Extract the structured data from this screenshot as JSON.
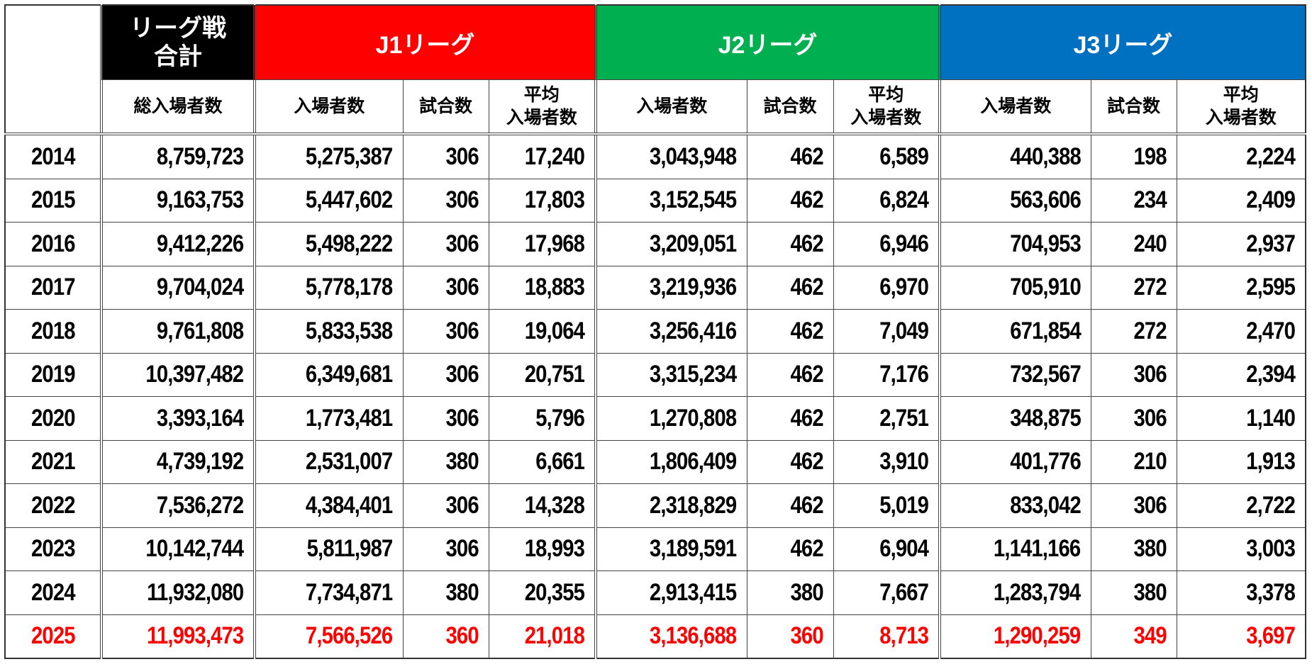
{
  "header": {
    "total": {
      "label_line1": "リーグ戦",
      "label_line2": "合計",
      "color": "#000000"
    },
    "leagues": [
      {
        "label": "J1リーグ",
        "color": "#ff0000"
      },
      {
        "label": "J2リーグ",
        "color": "#00b050"
      },
      {
        "label": "J3リーグ",
        "color": "#0070c0"
      }
    ],
    "sub": {
      "total_attendance": "総入場者数",
      "attendance": "入場者数",
      "matches": "試合数",
      "average_line1": "平均",
      "average_line2": "入場者数"
    }
  },
  "highlight_color": "#ff0000",
  "rows": [
    {
      "year": "2014",
      "total": "8,759,723",
      "j1": [
        "5,275,387",
        "306",
        "17,240"
      ],
      "j2": [
        "3,043,948",
        "462",
        "6,589"
      ],
      "j3": [
        "440,388",
        "198",
        "2,224"
      ]
    },
    {
      "year": "2015",
      "total": "9,163,753",
      "j1": [
        "5,447,602",
        "306",
        "17,803"
      ],
      "j2": [
        "3,152,545",
        "462",
        "6,824"
      ],
      "j3": [
        "563,606",
        "234",
        "2,409"
      ]
    },
    {
      "year": "2016",
      "total": "9,412,226",
      "j1": [
        "5,498,222",
        "306",
        "17,968"
      ],
      "j2": [
        "3,209,051",
        "462",
        "6,946"
      ],
      "j3": [
        "704,953",
        "240",
        "2,937"
      ]
    },
    {
      "year": "2017",
      "total": "9,704,024",
      "j1": [
        "5,778,178",
        "306",
        "18,883"
      ],
      "j2": [
        "3,219,936",
        "462",
        "6,970"
      ],
      "j3": [
        "705,910",
        "272",
        "2,595"
      ]
    },
    {
      "year": "2018",
      "total": "9,761,808",
      "j1": [
        "5,833,538",
        "306",
        "19,064"
      ],
      "j2": [
        "3,256,416",
        "462",
        "7,049"
      ],
      "j3": [
        "671,854",
        "272",
        "2,470"
      ]
    },
    {
      "year": "2019",
      "total": "10,397,482",
      "j1": [
        "6,349,681",
        "306",
        "20,751"
      ],
      "j2": [
        "3,315,234",
        "462",
        "7,176"
      ],
      "j3": [
        "732,567",
        "306",
        "2,394"
      ]
    },
    {
      "year": "2020",
      "total": "3,393,164",
      "j1": [
        "1,773,481",
        "306",
        "5,796"
      ],
      "j2": [
        "1,270,808",
        "462",
        "2,751"
      ],
      "j3": [
        "348,875",
        "306",
        "1,140"
      ]
    },
    {
      "year": "2021",
      "total": "4,739,192",
      "j1": [
        "2,531,007",
        "380",
        "6,661"
      ],
      "j2": [
        "1,806,409",
        "462",
        "3,910"
      ],
      "j3": [
        "401,776",
        "210",
        "1,913"
      ]
    },
    {
      "year": "2022",
      "total": "7,536,272",
      "j1": [
        "4,384,401",
        "306",
        "14,328"
      ],
      "j2": [
        "2,318,829",
        "462",
        "5,019"
      ],
      "j3": [
        "833,042",
        "306",
        "2,722"
      ]
    },
    {
      "year": "2023",
      "total": "10,142,744",
      "j1": [
        "5,811,987",
        "306",
        "18,993"
      ],
      "j2": [
        "3,189,591",
        "462",
        "6,904"
      ],
      "j3": [
        "1,141,166",
        "380",
        "3,003"
      ]
    },
    {
      "year": "2024",
      "total": "11,932,080",
      "j1": [
        "7,734,871",
        "380",
        "20,355"
      ],
      "j2": [
        "2,913,415",
        "380",
        "7,667"
      ],
      "j3": [
        "1,283,794",
        "380",
        "3,378"
      ]
    },
    {
      "year": "2025",
      "total": "11,993,473",
      "j1": [
        "7,566,526",
        "360",
        "21,018"
      ],
      "j2": [
        "3,136,688",
        "360",
        "8,713"
      ],
      "j3": [
        "1,290,259",
        "349",
        "3,697"
      ],
      "highlight": true
    }
  ]
}
